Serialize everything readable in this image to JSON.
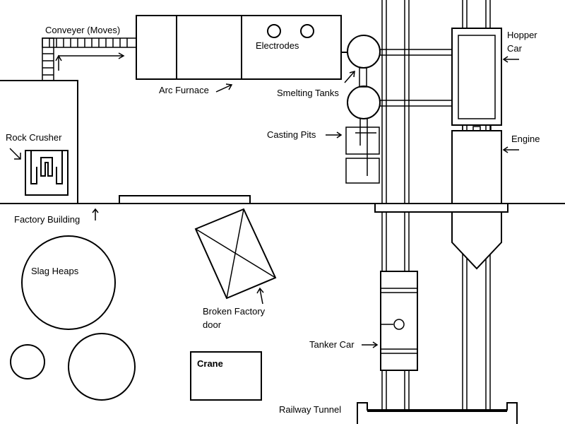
{
  "labels": {
    "conveyer": "Conveyer (Moves)",
    "electrodes": "Electrodes",
    "arc_furnace": "Arc Furnace",
    "smelting_tanks": "Smelting Tanks",
    "casting_pits": "Casting Pits",
    "hopper_car_line1": "Hopper",
    "hopper_car_line2": "Car",
    "engine": "Engine",
    "rock_crusher": "Rock Crusher",
    "factory_building": "Factory Building",
    "slag_heaps": "Slag Heaps",
    "broken_door_line1": "Broken Factory",
    "broken_door_line2": "door",
    "tanker_car": "Tanker Car",
    "crane": "Crane",
    "railway_tunnel": "Railway Tunnel"
  }
}
